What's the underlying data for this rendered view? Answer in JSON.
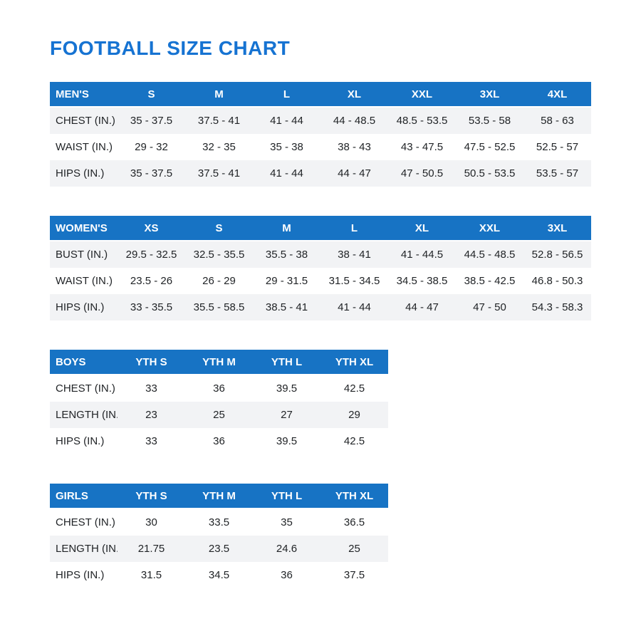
{
  "page": {
    "title": "FOOTBALL SIZE CHART"
  },
  "colors": {
    "title_blue": "#1673D2",
    "header_blue": "#1773C4",
    "stripe_gray": "#F2F3F5",
    "text_dark": "#212427"
  },
  "tables": [
    {
      "id": "mens",
      "header": [
        "MEN'S",
        "S",
        "M",
        "L",
        "XL",
        "XXL",
        "3XL",
        "4XL"
      ],
      "first_row_shaded": true,
      "rows": [
        {
          "label": "CHEST (IN.)",
          "values": [
            "35 - 37.5",
            "37.5 - 41",
            "41 - 44",
            "44 - 48.5",
            "48.5 - 53.5",
            "53.5 - 58",
            "58 - 63"
          ]
        },
        {
          "label": "WAIST (IN.)",
          "values": [
            "29 - 32",
            "32 - 35",
            "35 - 38",
            "38 - 43",
            "43 - 47.5",
            "47.5 - 52.5",
            "52.5 - 57"
          ]
        },
        {
          "label": "HIPS (IN.)",
          "values": [
            "35 - 37.5",
            "37.5 - 41",
            "41 - 44",
            "44 - 47",
            "47 - 50.5",
            "50.5 - 53.5",
            "53.5 - 57"
          ]
        }
      ]
    },
    {
      "id": "womens",
      "header": [
        "WOMEN'S",
        "XS",
        "S",
        "M",
        "L",
        "XL",
        "XXL",
        "3XL"
      ],
      "first_row_shaded": true,
      "rows": [
        {
          "label": "BUST (IN.)",
          "values": [
            "29.5 - 32.5",
            "32.5 - 35.5",
            "35.5 - 38",
            "38 - 41",
            "41 - 44.5",
            "44.5 - 48.5",
            "52.8 - 56.5"
          ]
        },
        {
          "label": "WAIST (IN.)",
          "values": [
            "23.5 - 26",
            "26 - 29",
            "29 - 31.5",
            "31.5 - 34.5",
            "34.5 - 38.5",
            "38.5 - 42.5",
            "46.8 - 50.3"
          ]
        },
        {
          "label": "HIPS (IN.)",
          "values": [
            "33 - 35.5",
            "35.5 - 58.5",
            "38.5 - 41",
            "41 - 44",
            "44 - 47",
            "47 - 50",
            "54.3 - 58.3"
          ]
        }
      ]
    },
    {
      "id": "boys",
      "header": [
        "BOYS",
        "YTH S",
        "YTH M",
        "YTH L",
        "YTH XL"
      ],
      "first_row_shaded": false,
      "rows": [
        {
          "label": "CHEST (IN.)",
          "values": [
            "33",
            "36",
            "39.5",
            "42.5"
          ]
        },
        {
          "label": "LENGTH (IN.)",
          "values": [
            "23",
            "25",
            "27",
            "29"
          ]
        },
        {
          "label": "HIPS (IN.)",
          "values": [
            "33",
            "36",
            "39.5",
            "42.5"
          ]
        }
      ]
    },
    {
      "id": "girls",
      "header": [
        "GIRLS",
        "YTH S",
        "YTH M",
        "YTH L",
        "YTH XL"
      ],
      "first_row_shaded": false,
      "rows": [
        {
          "label": "CHEST (IN.)",
          "values": [
            "30",
            "33.5",
            "35",
            "36.5"
          ]
        },
        {
          "label": "LENGTH (IN.)",
          "values": [
            "21.75",
            "23.5",
            "24.6",
            "25"
          ]
        },
        {
          "label": "HIPS (IN.)",
          "values": [
            "31.5",
            "34.5",
            "36",
            "37.5"
          ]
        }
      ]
    }
  ]
}
